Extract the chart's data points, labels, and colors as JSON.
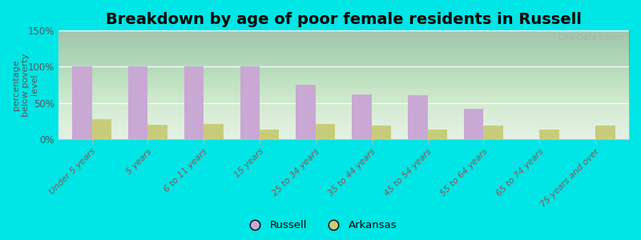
{
  "title": "Breakdown by age of poor female residents in Russell",
  "categories": [
    "Under 5 years",
    "5 years",
    "6 to 11 years",
    "15 years",
    "25 to 34 years",
    "35 to 44 years",
    "45 to 54 years",
    "55 to 64 years",
    "65 to 74 years",
    "75 years and over"
  ],
  "russell_values": [
    100,
    100,
    100,
    100,
    75,
    62,
    61,
    42,
    0,
    0
  ],
  "arkansas_values": [
    27,
    20,
    21,
    13,
    21,
    18,
    13,
    18,
    13,
    18
  ],
  "russell_color": "#c9a8d4",
  "arkansas_color": "#c8cc7a",
  "ylabel": "percentage\nbelow poverty\nlevel",
  "ylim": [
    0,
    150
  ],
  "yticks": [
    0,
    50,
    100,
    150
  ],
  "ytick_labels": [
    "0%",
    "50%",
    "100%",
    "150%"
  ],
  "background_color": "#00e5e5",
  "bar_width": 0.35,
  "title_fontsize": 14,
  "watermark": "City-Data.com"
}
